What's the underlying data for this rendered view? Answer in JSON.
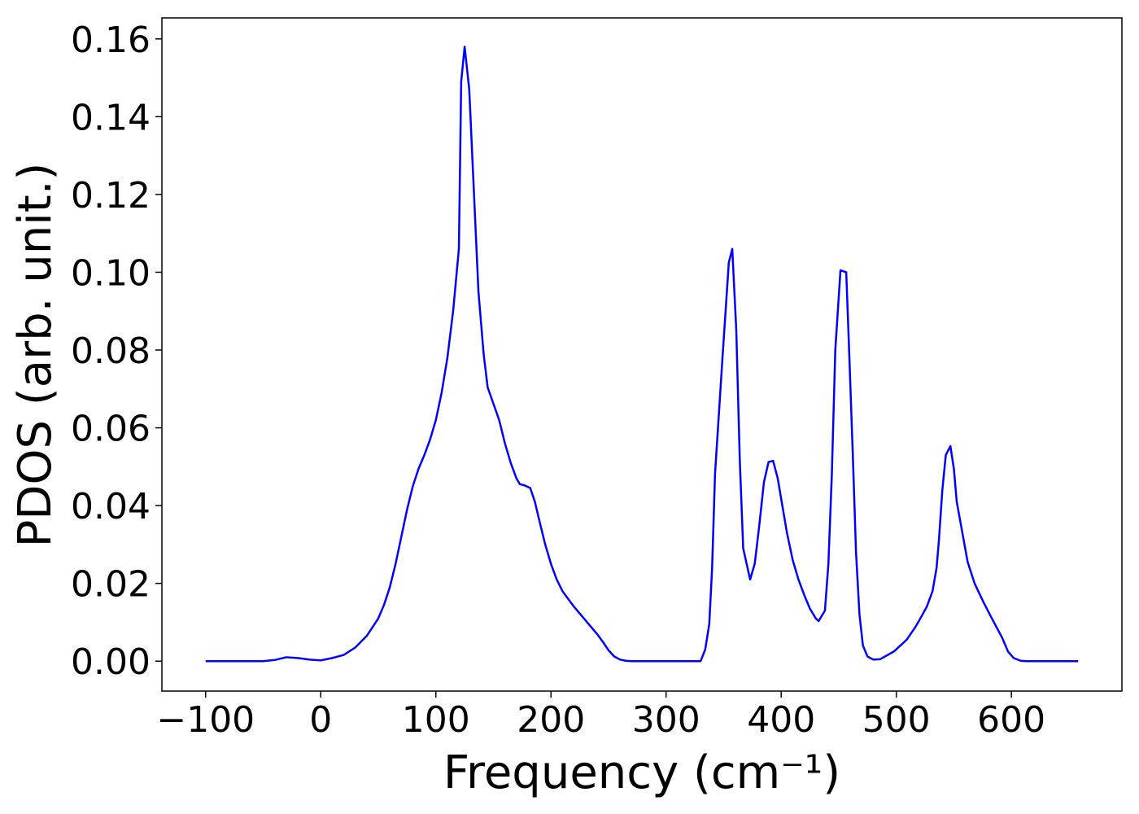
{
  "chart_data": {
    "type": "line",
    "x_label": "Frequency (cm⁻¹)",
    "y_label": "PDOS (arb. unit.)",
    "color": "#0000ff",
    "x": [
      -100,
      -50,
      -40,
      -30,
      -20,
      -10,
      0,
      10,
      20,
      30,
      40,
      50,
      55,
      60,
      65,
      70,
      75,
      80,
      85,
      90,
      95,
      100,
      105,
      110,
      115,
      120,
      122,
      125,
      129,
      137,
      141.5,
      145,
      155,
      160,
      165,
      170,
      173,
      177,
      182,
      186,
      190,
      195,
      200,
      205,
      210,
      220,
      230,
      240,
      245,
      250,
      255,
      260,
      265,
      270,
      330,
      334,
      337.5,
      340,
      342.5,
      349,
      354.5,
      357.5,
      361,
      364,
      367,
      373,
      377,
      381,
      385,
      389,
      393,
      397,
      401,
      405,
      410,
      415,
      420,
      425,
      430,
      432.5,
      438,
      441,
      444,
      447,
      451.5,
      456.5,
      459,
      462,
      465,
      468,
      471,
      475,
      480,
      486,
      498,
      509,
      516,
      520,
      526.5,
      531.5,
      535,
      537,
      540,
      543,
      547,
      550,
      552.5,
      558,
      562,
      568,
      576,
      583,
      592,
      597,
      602,
      608,
      613,
      658
    ],
    "values": [
      0,
      0,
      0.0003,
      0.001,
      0.0008,
      0.0004,
      0.0002,
      0.0008,
      0.0016,
      0.0035,
      0.0065,
      0.011,
      0.0145,
      0.019,
      0.025,
      0.032,
      0.039,
      0.045,
      0.0495,
      0.053,
      0.057,
      0.062,
      0.069,
      0.078,
      0.09,
      0.106,
      0.149,
      0.158,
      0.147,
      0.095,
      0.079,
      0.0704,
      0.062,
      0.056,
      0.051,
      0.047,
      0.0455,
      0.0452,
      0.0445,
      0.041,
      0.036,
      0.03,
      0.025,
      0.021,
      0.018,
      0.014,
      0.0105,
      0.007,
      0.005,
      0.0028,
      0.0012,
      0.0004,
      0.0001,
      0,
      0,
      0.003,
      0.0095,
      0.024,
      0.048,
      0.078,
      0.1025,
      0.106,
      0.085,
      0.052,
      0.029,
      0.021,
      0.025,
      0.035,
      0.046,
      0.0512,
      0.0515,
      0.047,
      0.04,
      0.033,
      0.026,
      0.021,
      0.017,
      0.0135,
      0.011,
      0.0103,
      0.013,
      0.025,
      0.048,
      0.08,
      0.1005,
      0.1,
      0.08,
      0.055,
      0.028,
      0.012,
      0.004,
      0.0012,
      0.0004,
      0.0005,
      0.0025,
      0.0055,
      0.0085,
      0.0105,
      0.014,
      0.018,
      0.024,
      0.031,
      0.044,
      0.053,
      0.0553,
      0.0495,
      0.041,
      0.032,
      0.0255,
      0.02,
      0.015,
      0.011,
      0.006,
      0.0025,
      0.0008,
      0.0001,
      0,
      0
    ],
    "xlim": [
      -138,
      696
    ],
    "ylim": [
      -0.0077,
      0.1654
    ],
    "xticks": [
      {
        "value": -100,
        "label": "−100"
      },
      0,
      100,
      200,
      300,
      400,
      500,
      600
    ],
    "yticks": [
      {
        "value": 0,
        "label": "0.00"
      },
      0.02,
      0.04,
      0.06,
      0.08,
      {
        "value": 0.1,
        "label": "0.10"
      },
      0.12,
      0.14,
      0.16
    ],
    "grid": false
  }
}
